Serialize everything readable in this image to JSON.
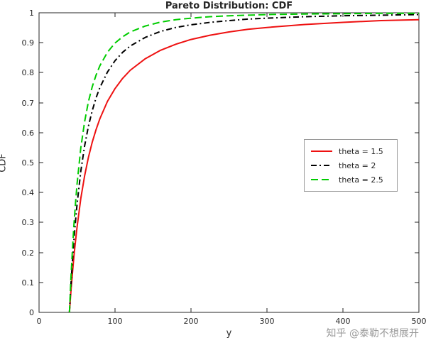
{
  "watermark": "知乎 @泰勒不想展开",
  "chart_data": {
    "type": "line",
    "title": "Pareto Distribution: CDF",
    "xlabel": "y",
    "ylabel": "CDF",
    "xlim": [
      0,
      500
    ],
    "ylim": [
      0,
      1
    ],
    "grid": false,
    "legend_position": "right-middle-inside",
    "axis_color": "#262626",
    "background_color": "#ffffff",
    "xticks": [
      0,
      100,
      200,
      300,
      400,
      500
    ],
    "xtick_labels": [
      "0",
      "100",
      "200",
      "300",
      "400",
      "500"
    ],
    "yticks": [
      0,
      0.1,
      0.2,
      0.3,
      0.4,
      0.5,
      0.6,
      0.7,
      0.8,
      0.9,
      1
    ],
    "ytick_labels": [
      "0",
      "0.1",
      "0.2",
      "0.3",
      "0.4",
      "0.5",
      "0.6",
      "0.7",
      "0.8",
      "0.9",
      "1"
    ],
    "x": [
      40,
      42,
      44,
      46,
      48,
      50,
      55,
      60,
      65,
      70,
      75,
      80,
      90,
      100,
      110,
      120,
      140,
      160,
      180,
      200,
      225,
      250,
      275,
      300,
      350,
      400,
      450,
      500
    ],
    "series": [
      {
        "name": "theta = 1.5",
        "color": "#ee1111",
        "linestyle": "solid",
        "linewidth": 2,
        "values": [
          0,
          0.071,
          0.133,
          0.189,
          0.239,
          0.284,
          0.38,
          0.456,
          0.517,
          0.568,
          0.61,
          0.646,
          0.704,
          0.747,
          0.781,
          0.808,
          0.847,
          0.875,
          0.895,
          0.911,
          0.925,
          0.936,
          0.945,
          0.951,
          0.961,
          0.968,
          0.974,
          0.977
        ]
      },
      {
        "name": "theta = 2",
        "color": "#000000",
        "linestyle": "dashdot",
        "linewidth": 2,
        "values": [
          0,
          0.093,
          0.174,
          0.244,
          0.306,
          0.36,
          0.471,
          0.556,
          0.621,
          0.673,
          0.716,
          0.75,
          0.802,
          0.84,
          0.868,
          0.889,
          0.918,
          0.938,
          0.951,
          0.96,
          0.968,
          0.974,
          0.979,
          0.982,
          0.987,
          0.99,
          0.992,
          0.994
        ]
      },
      {
        "name": "theta = 2.5",
        "color": "#00cc00",
        "linestyle": "dashed",
        "linewidth": 2,
        "values": [
          0,
          0.115,
          0.212,
          0.295,
          0.366,
          0.428,
          0.549,
          0.637,
          0.703,
          0.753,
          0.792,
          0.823,
          0.868,
          0.899,
          0.92,
          0.936,
          0.956,
          0.969,
          0.977,
          0.982,
          0.987,
          0.99,
          0.992,
          0.994,
          0.996,
          0.997,
          0.998,
          0.998
        ]
      }
    ]
  }
}
